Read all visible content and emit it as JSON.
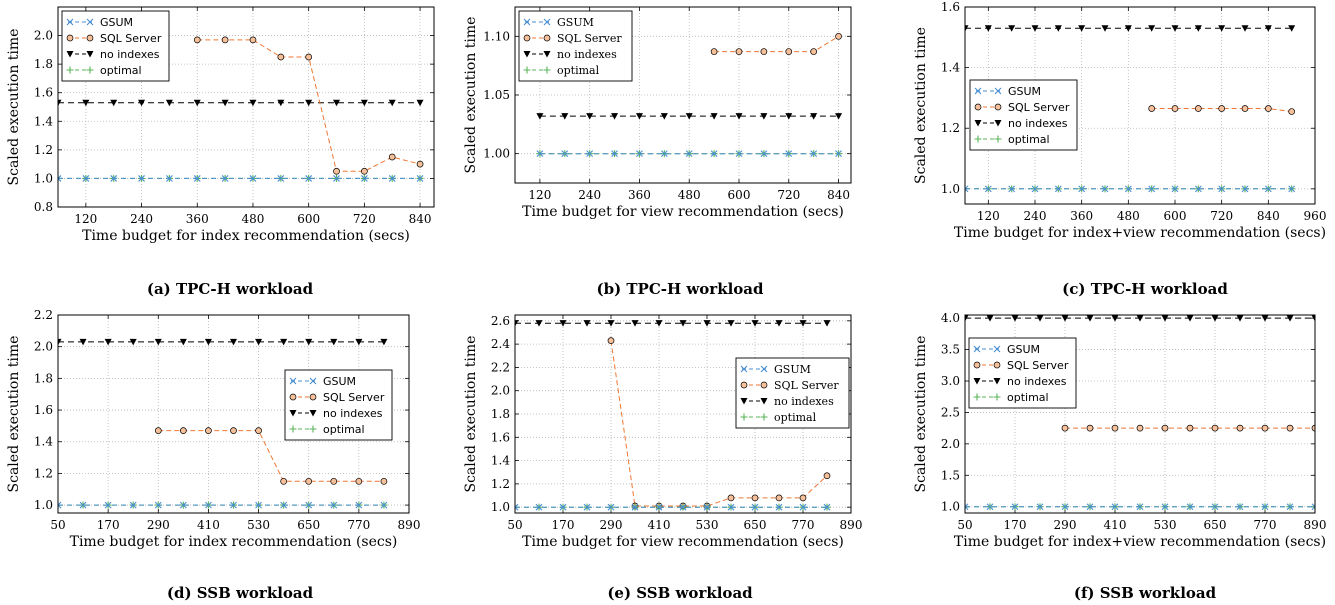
{
  "colors": {
    "gsum": "#4a8fd1",
    "sql": "#ef7733",
    "sql_fill": "#f6c09a",
    "noidx": "#000000",
    "optimal": "#5ab55a",
    "grid": "#b5b5b5"
  },
  "chart_data": [
    {
      "type": "line",
      "caption": "(a) TPC-H workload",
      "xlabel": "Time budget for index recommendation (secs)",
      "ylabel": "Scaled execution time",
      "xlim": [
        60,
        870
      ],
      "ylim": [
        0.8,
        2.2
      ],
      "xticks": [
        120,
        240,
        360,
        480,
        600,
        720,
        840
      ],
      "xtick_labels": [
        "120",
        "240",
        "360",
        "480",
        "600",
        "720",
        "840"
      ],
      "yticks": [
        0.8,
        1.0,
        1.2,
        1.4,
        1.6,
        1.8,
        2.0
      ],
      "ytick_labels": [
        "0.8",
        "1.0",
        "1.2",
        "1.4",
        "1.6",
        "1.8",
        "2.0"
      ],
      "legend": {
        "position": "upper-left",
        "labels": [
          "GSUM",
          "SQL Server",
          "no indexes",
          "optimal"
        ]
      },
      "series": [
        {
          "name": "GSUM",
          "marker": "x",
          "x": [
            60,
            120,
            180,
            240,
            300,
            360,
            420,
            480,
            540,
            600,
            660,
            720,
            780,
            840
          ],
          "y": [
            1,
            1,
            1,
            1,
            1,
            1,
            1,
            1,
            1,
            1,
            1,
            1,
            1,
            1
          ]
        },
        {
          "name": "SQL Server",
          "marker": "o",
          "x": [
            360,
            420,
            480,
            540,
            600,
            660,
            720,
            780,
            840
          ],
          "y": [
            1.97,
            1.97,
            1.97,
            1.85,
            1.85,
            1.05,
            1.05,
            1.15,
            1.1
          ]
        },
        {
          "name": "no indexes",
          "marker": "v",
          "x": [
            60,
            120,
            180,
            240,
            300,
            360,
            420,
            480,
            540,
            600,
            660,
            720,
            780,
            840
          ],
          "y": [
            1.53,
            1.53,
            1.53,
            1.53,
            1.53,
            1.53,
            1.53,
            1.53,
            1.53,
            1.53,
            1.53,
            1.53,
            1.53,
            1.53
          ]
        },
        {
          "name": "optimal",
          "marker": "+",
          "x": [
            60,
            120,
            180,
            240,
            300,
            360,
            420,
            480,
            540,
            600,
            660,
            720,
            780,
            840
          ],
          "y": [
            1,
            1,
            1,
            1,
            1,
            1,
            1,
            1,
            1,
            1,
            1,
            1,
            1,
            1
          ]
        }
      ]
    },
    {
      "type": "line",
      "caption": "(b) TPC-H workload",
      "xlabel": "Time budget for view recommendation (secs)",
      "ylabel": "Scaled execution time",
      "xlim": [
        60,
        870
      ],
      "ylim": [
        0.975,
        1.125
      ],
      "xticks": [
        120,
        240,
        360,
        480,
        600,
        720,
        840
      ],
      "xtick_labels": [
        "120",
        "240",
        "360",
        "480",
        "600",
        "720",
        "840"
      ],
      "yticks": [
        1.0,
        1.05,
        1.1
      ],
      "ytick_labels": [
        "1.00",
        "1.05",
        "1.10"
      ],
      "legend": {
        "position": "upper-left",
        "labels": [
          "GSUM",
          "SQL Server",
          "no indexes",
          "optimal"
        ]
      },
      "series": [
        {
          "name": "GSUM",
          "marker": "x",
          "x": [
            120,
            180,
            240,
            300,
            360,
            420,
            480,
            540,
            600,
            660,
            720,
            780,
            840
          ],
          "y": [
            1,
            1,
            1,
            1,
            1,
            1,
            1,
            1,
            1,
            1,
            1,
            1,
            1
          ]
        },
        {
          "name": "SQL Server",
          "marker": "o",
          "x": [
            540,
            600,
            660,
            720,
            780,
            840
          ],
          "y": [
            1.087,
            1.087,
            1.087,
            1.087,
            1.087,
            1.1
          ]
        },
        {
          "name": "no indexes",
          "marker": "v",
          "x": [
            120,
            180,
            240,
            300,
            360,
            420,
            480,
            540,
            600,
            660,
            720,
            780,
            840
          ],
          "y": [
            1.032,
            1.032,
            1.032,
            1.032,
            1.032,
            1.032,
            1.032,
            1.032,
            1.032,
            1.032,
            1.032,
            1.032,
            1.032
          ]
        },
        {
          "name": "optimal",
          "marker": "+",
          "x": [
            120,
            180,
            240,
            300,
            360,
            420,
            480,
            540,
            600,
            660,
            720,
            780,
            840
          ],
          "y": [
            1,
            1,
            1,
            1,
            1,
            1,
            1,
            1,
            1,
            1,
            1,
            1,
            1
          ]
        }
      ]
    },
    {
      "type": "line",
      "caption": "(c) TPC-H workload",
      "xlabel": "Time budget for index+view recommendation (secs)",
      "ylabel": "Scaled execution time",
      "xlim": [
        60,
        960
      ],
      "ylim": [
        0.95,
        1.6
      ],
      "xticks": [
        120,
        240,
        360,
        480,
        600,
        720,
        840,
        960
      ],
      "xtick_labels": [
        "120",
        "240",
        "360",
        "480",
        "600",
        "720",
        "840",
        "960"
      ],
      "yticks": [
        1.0,
        1.2,
        1.4,
        1.6
      ],
      "ytick_labels": [
        "1.0",
        "1.2",
        "1.4",
        "1.6"
      ],
      "legend": {
        "position": "center-left",
        "labels": [
          "GSUM",
          "SQL Server",
          "no indexes",
          "optimal"
        ]
      },
      "series": [
        {
          "name": "GSUM",
          "marker": "x",
          "x": [
            60,
            120,
            180,
            240,
            300,
            360,
            420,
            480,
            540,
            600,
            660,
            720,
            780,
            840,
            900
          ],
          "y": [
            1,
            1,
            1,
            1,
            1,
            1,
            1,
            1,
            1,
            1,
            1,
            1,
            1,
            1,
            1
          ]
        },
        {
          "name": "SQL Server",
          "marker": "o",
          "x": [
            540,
            600,
            660,
            720,
            780,
            840,
            900
          ],
          "y": [
            1.265,
            1.265,
            1.265,
            1.265,
            1.265,
            1.265,
            1.255
          ]
        },
        {
          "name": "no indexes",
          "marker": "v",
          "x": [
            60,
            120,
            180,
            240,
            300,
            360,
            420,
            480,
            540,
            600,
            660,
            720,
            780,
            840,
            900
          ],
          "y": [
            1.53,
            1.53,
            1.53,
            1.53,
            1.53,
            1.53,
            1.53,
            1.53,
            1.53,
            1.53,
            1.53,
            1.53,
            1.53,
            1.53,
            1.53
          ]
        },
        {
          "name": "optimal",
          "marker": "+",
          "x": [
            60,
            120,
            180,
            240,
            300,
            360,
            420,
            480,
            540,
            600,
            660,
            720,
            780,
            840,
            900
          ],
          "y": [
            1,
            1,
            1,
            1,
            1,
            1,
            1,
            1,
            1,
            1,
            1,
            1,
            1,
            1,
            1
          ]
        }
      ]
    },
    {
      "type": "line",
      "caption": "(d) SSB workload",
      "xlabel": "Time budget for index recommendation (secs)",
      "ylabel": "Scaled execution time",
      "xlim": [
        50,
        890
      ],
      "ylim": [
        0.95,
        2.2
      ],
      "xticks": [
        50,
        170,
        290,
        410,
        530,
        650,
        770,
        890
      ],
      "xtick_labels": [
        "50",
        "170",
        "290",
        "410",
        "530",
        "650",
        "770",
        "890"
      ],
      "yticks": [
        1.0,
        1.2,
        1.4,
        1.6,
        1.8,
        2.0,
        2.2
      ],
      "ytick_labels": [
        "1.0",
        "1.2",
        "1.4",
        "1.6",
        "1.8",
        "2.0",
        "2.2"
      ],
      "legend": {
        "position": "center-right",
        "labels": [
          "GSUM",
          "SQL Server",
          "no indexes",
          "optimal"
        ]
      },
      "series": [
        {
          "name": "GSUM",
          "marker": "x",
          "x": [
            50,
            110,
            170,
            230,
            290,
            350,
            410,
            470,
            530,
            590,
            650,
            710,
            770,
            830
          ],
          "y": [
            1,
            1,
            1,
            1,
            1,
            1,
            1,
            1,
            1,
            1,
            1,
            1,
            1,
            1
          ]
        },
        {
          "name": "SQL Server",
          "marker": "o",
          "x": [
            290,
            350,
            410,
            470,
            530,
            590,
            650,
            710,
            770,
            830
          ],
          "y": [
            1.47,
            1.47,
            1.47,
            1.47,
            1.47,
            1.15,
            1.15,
            1.15,
            1.15,
            1.15
          ]
        },
        {
          "name": "no indexes",
          "marker": "v",
          "x": [
            50,
            110,
            170,
            230,
            290,
            350,
            410,
            470,
            530,
            590,
            650,
            710,
            770,
            830
          ],
          "y": [
            2.03,
            2.03,
            2.03,
            2.03,
            2.03,
            2.03,
            2.03,
            2.03,
            2.03,
            2.03,
            2.03,
            2.03,
            2.03,
            2.03
          ]
        },
        {
          "name": "optimal",
          "marker": "+",
          "x": [
            50,
            110,
            170,
            230,
            290,
            350,
            410,
            470,
            530,
            590,
            650,
            710,
            770,
            830
          ],
          "y": [
            1,
            1,
            1,
            1,
            1,
            1,
            1,
            1,
            1,
            1,
            1,
            1,
            1,
            1
          ]
        }
      ]
    },
    {
      "type": "line",
      "caption": "(e) SSB workload",
      "xlabel": "Time budget for view recommendation (secs)",
      "ylabel": "Scaled execution time",
      "xlim": [
        50,
        890
      ],
      "ylim": [
        0.95,
        2.65
      ],
      "xticks": [
        50,
        170,
        290,
        410,
        530,
        650,
        770,
        890
      ],
      "xtick_labels": [
        "50",
        "170",
        "290",
        "410",
        "530",
        "650",
        "770",
        "890"
      ],
      "yticks": [
        1.0,
        1.2,
        1.4,
        1.6,
        1.8,
        2.0,
        2.2,
        2.4,
        2.6
      ],
      "ytick_labels": [
        "1.0",
        "1.2",
        "1.4",
        "1.6",
        "1.8",
        "2.0",
        "2.2",
        "2.4",
        "2.6"
      ],
      "legend": {
        "position": "center-right",
        "labels": [
          "GSUM",
          "SQL Server",
          "no indexes",
          "optimal"
        ]
      },
      "series": [
        {
          "name": "GSUM",
          "marker": "x",
          "x": [
            50,
            110,
            170,
            230,
            290,
            350,
            410,
            470,
            530,
            590,
            650,
            710,
            770,
            830
          ],
          "y": [
            1,
            1,
            1,
            1,
            1,
            1,
            1,
            1,
            1,
            1,
            1,
            1,
            1,
            1
          ]
        },
        {
          "name": "SQL Server",
          "marker": "o",
          "x": [
            290,
            350,
            410,
            470,
            530,
            590,
            650,
            710,
            770,
            830
          ],
          "y": [
            2.43,
            1.01,
            1.01,
            1.01,
            1.01,
            1.08,
            1.08,
            1.08,
            1.08,
            1.27
          ]
        },
        {
          "name": "no indexes",
          "marker": "v",
          "x": [
            50,
            110,
            170,
            230,
            290,
            350,
            410,
            470,
            530,
            590,
            650,
            710,
            770,
            830
          ],
          "y": [
            2.58,
            2.58,
            2.58,
            2.58,
            2.58,
            2.58,
            2.58,
            2.58,
            2.58,
            2.58,
            2.58,
            2.58,
            2.58,
            2.58
          ]
        },
        {
          "name": "optimal",
          "marker": "+",
          "x": [
            50,
            110,
            170,
            230,
            290,
            350,
            410,
            470,
            530,
            590,
            650,
            710,
            770,
            830
          ],
          "y": [
            1,
            1,
            1,
            1,
            1,
            1,
            1,
            1,
            1,
            1,
            1,
            1,
            1,
            1
          ]
        }
      ]
    },
    {
      "type": "line",
      "caption": "(f) SSB workload",
      "xlabel": "Time budget for index+view recommendation (secs)",
      "ylabel": "Scaled execution time",
      "xlim": [
        50,
        890
      ],
      "ylim": [
        0.9,
        4.05
      ],
      "xticks": [
        50,
        170,
        290,
        410,
        530,
        650,
        770,
        890
      ],
      "xtick_labels": [
        "50",
        "170",
        "290",
        "410",
        "530",
        "650",
        "770",
        "890"
      ],
      "yticks": [
        1.0,
        1.5,
        2.0,
        2.5,
        3.0,
        3.5,
        4.0
      ],
      "ytick_labels": [
        "1.0",
        "1.5",
        "2.0",
        "2.5",
        "3.0",
        "3.5",
        "4.0"
      ],
      "legend": {
        "position": "center-left",
        "labels": [
          "GSUM",
          "SQL Server",
          "no indexes",
          "optimal"
        ]
      },
      "series": [
        {
          "name": "GSUM",
          "marker": "x",
          "x": [
            50,
            110,
            170,
            230,
            290,
            350,
            410,
            470,
            530,
            590,
            650,
            710,
            770,
            830,
            890
          ],
          "y": [
            1,
            1,
            1,
            1,
            1,
            1,
            1,
            1,
            1,
            1,
            1,
            1,
            1,
            1,
            1
          ]
        },
        {
          "name": "SQL Server",
          "marker": "o",
          "x": [
            290,
            350,
            410,
            470,
            530,
            590,
            650,
            710,
            770,
            830,
            890
          ],
          "y": [
            2.25,
            2.25,
            2.25,
            2.25,
            2.25,
            2.25,
            2.25,
            2.25,
            2.25,
            2.25,
            2.25
          ]
        },
        {
          "name": "no indexes",
          "marker": "v",
          "x": [
            50,
            110,
            170,
            230,
            290,
            350,
            410,
            470,
            530,
            590,
            650,
            710,
            770,
            830,
            890
          ],
          "y": [
            4.0,
            4.0,
            4.0,
            4.0,
            4.0,
            4.0,
            4.0,
            4.0,
            4.0,
            4.0,
            4.0,
            4.0,
            4.0,
            4.0,
            4.0
          ]
        },
        {
          "name": "optimal",
          "marker": "+",
          "x": [
            50,
            110,
            170,
            230,
            290,
            350,
            410,
            470,
            530,
            590,
            650,
            710,
            770,
            830,
            890
          ],
          "y": [
            1,
            1,
            1,
            1,
            1,
            1,
            1,
            1,
            1,
            1,
            1,
            1,
            1,
            1,
            1
          ]
        }
      ]
    }
  ]
}
